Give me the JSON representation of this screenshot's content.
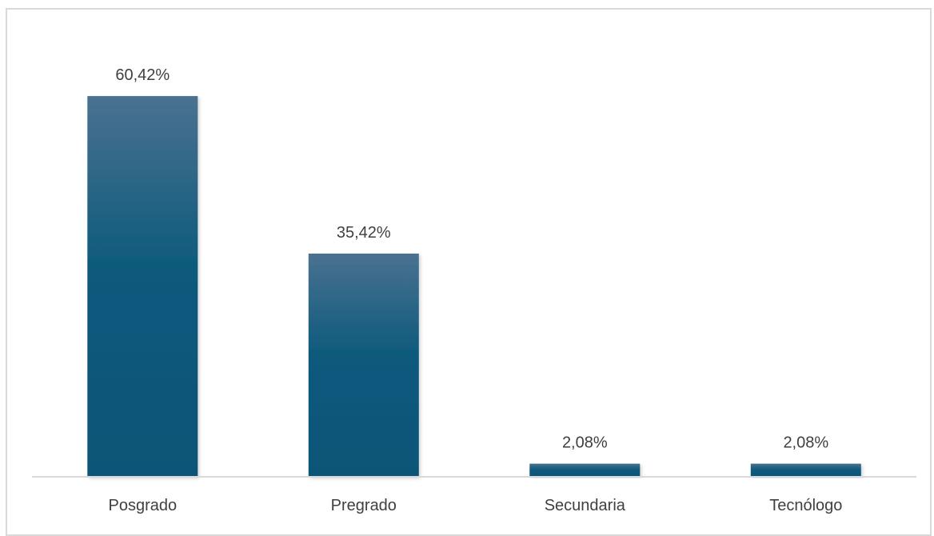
{
  "chart_data": {
    "type": "bar",
    "categories": [
      "Posgrado",
      "Pregrado",
      "Secundaria",
      "Tecnólogo"
    ],
    "values": [
      60.42,
      35.42,
      2.08,
      2.08
    ],
    "data_labels": [
      "60,42%",
      "35,42%",
      "2,08%",
      "2,08%"
    ],
    "ylim": [
      0,
      70
    ],
    "grid": false,
    "legend": "none",
    "colors": {
      "bar_top": "#4a7190",
      "bar_bottom": "#0b5578",
      "axis": "#d9d9d9",
      "text": "#404040"
    }
  }
}
